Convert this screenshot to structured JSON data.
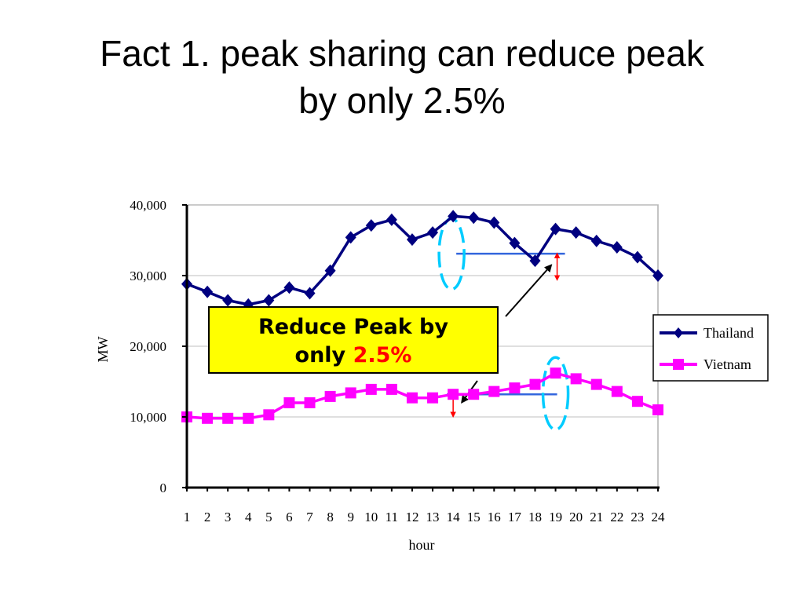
{
  "slide": {
    "title_line1": "Fact 1. peak sharing can reduce peak",
    "title_line2": "by only 2.5%"
  },
  "callout": {
    "text_line1": "Reduce Peak by",
    "text_line2_prefix": "only",
    "text_highlight": "2.5%",
    "highlight_color": "#ff0000",
    "background_color": "#ffff00"
  },
  "chart_data": {
    "type": "line",
    "xlabel": "hour",
    "ylabel": "MW",
    "ylim": [
      0,
      40000
    ],
    "yticks": [
      0,
      10000,
      20000,
      30000,
      40000
    ],
    "ytick_labels": [
      "0",
      "10,000",
      "20,000",
      "30,000",
      "40,000"
    ],
    "grid": true,
    "legend_position": "right",
    "categories": [
      "1",
      "2",
      "3",
      "4",
      "5",
      "6",
      "7",
      "8",
      "9",
      "10",
      "11",
      "12",
      "13",
      "14",
      "15",
      "16",
      "17",
      "18",
      "19",
      "20",
      "21",
      "22",
      "23",
      "24"
    ],
    "series": [
      {
        "name": "Thailand",
        "color": "#000080",
        "marker": "diamond",
        "values": [
          28800,
          27700,
          26500,
          25900,
          26500,
          28300,
          27500,
          30700,
          35400,
          37100,
          37900,
          35100,
          36100,
          38400,
          38200,
          37500,
          34600,
          32100,
          36600,
          36100,
          34900,
          34000,
          32600,
          30000
        ]
      },
      {
        "name": "Vietnam",
        "color": "#ff00ff",
        "marker": "square",
        "values": [
          10000,
          9800,
          9800,
          9800,
          10300,
          12000,
          12000,
          12900,
          13400,
          13900,
          13900,
          12700,
          12700,
          13200,
          13200,
          13600,
          14100,
          14600,
          16200,
          15400,
          14600,
          13600,
          12200,
          11000
        ]
      }
    ],
    "annotations": {
      "reference_color": "#3366dd",
      "marker_color": "#00ccff",
      "arrow_color": "#ff0000"
    }
  }
}
